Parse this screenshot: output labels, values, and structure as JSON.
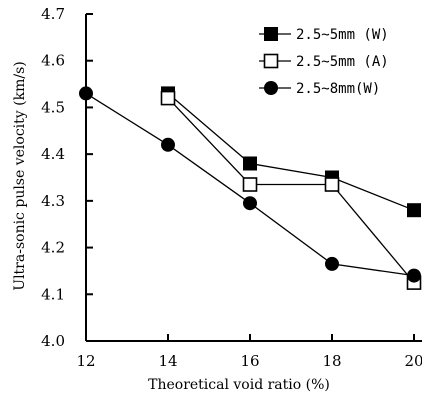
{
  "chart_data": {
    "type": "line",
    "xlabel": "Theoretical void ratio (%)",
    "ylabel": "Ultra-sonic pulse velocity (km/s)",
    "xlim": [
      12,
      20
    ],
    "ylim": [
      4.0,
      4.7
    ],
    "x_ticks": [
      "12",
      "14",
      "16",
      "18",
      "20"
    ],
    "y_ticks": [
      "4.0",
      "4.1",
      "4.2",
      "4.3",
      "4.4",
      "4.5",
      "4.6",
      "4.7"
    ],
    "legend_position": "top-right",
    "series": [
      {
        "name": "2.5~5mm (W)",
        "marker": "filled-square",
        "x": [
          14,
          16,
          18,
          20
        ],
        "y": [
          4.53,
          4.38,
          4.35,
          4.28
        ]
      },
      {
        "name": "2.5~5mm (A)",
        "marker": "open-square",
        "x": [
          14,
          16,
          18,
          20
        ],
        "y": [
          4.52,
          4.335,
          4.335,
          4.125
        ]
      },
      {
        "name": "2.5~8mm(W)",
        "marker": "filled-circle",
        "x": [
          12,
          14,
          16,
          18,
          20
        ],
        "y": [
          4.53,
          4.42,
          4.295,
          4.165,
          4.14
        ]
      }
    ]
  }
}
